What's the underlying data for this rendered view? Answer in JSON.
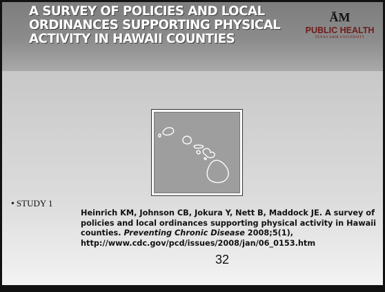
{
  "slide": {
    "title": "A SURVEY OF POLICIES AND LOCAL ORDINANCES SUPPORTING PHYSICAL ACTIVITY IN HAWAII COUNTIES",
    "logo": {
      "mark": "ĀM",
      "line1": "PUBLIC HEALTH",
      "line2": "TEXAS A&M UNIVERSITY"
    },
    "map_icon": "hawaii-islands-map",
    "bullet": "STUDY 1",
    "citation": {
      "authors": "Heinrich KM, Johnson CB, Jokura Y, Nett B, Maddock JE.",
      "title": "A survey of policies and local ordinances supporting physical activity in Hawaii counties.",
      "journal": "Preventing Chronic Disease",
      "issue": "2008;5(1),",
      "url": "http://www.cdc.gov/pcd/issues/2008/jan/06_0153.htm"
    },
    "slide_number": "32"
  },
  "colors": {
    "header_band": "#8c8c8c",
    "title_text": "#ffffff",
    "logo_accent": "#6f1a1a",
    "frame": "#111111"
  }
}
